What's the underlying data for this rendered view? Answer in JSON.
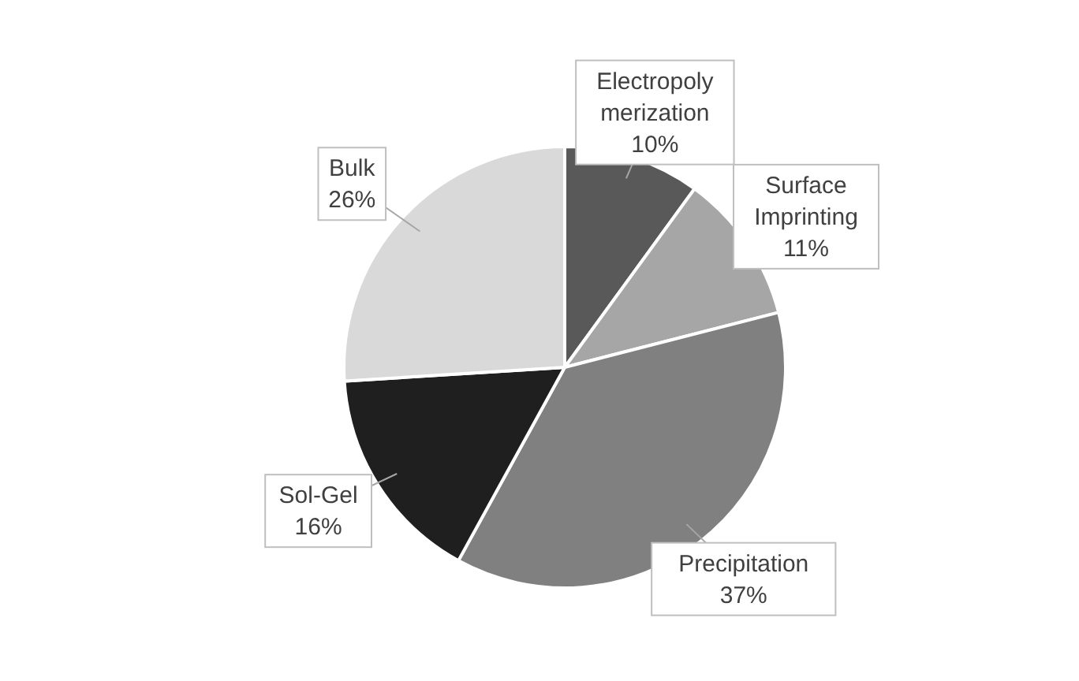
{
  "chart_data": {
    "type": "pie",
    "categories": [
      "Electropolymerization",
      "Surface Imprinting",
      "Precipitation",
      "Sol-Gel",
      "Bulk"
    ],
    "values": [
      10,
      11,
      37,
      16,
      26
    ],
    "colors": [
      "#595959",
      "#a6a6a6",
      "#808080",
      "#1f1f1f",
      "#d9d9d9"
    ],
    "value_labels": [
      "10%",
      "11%",
      "37%",
      "16%",
      "26%"
    ],
    "legend": false
  }
}
